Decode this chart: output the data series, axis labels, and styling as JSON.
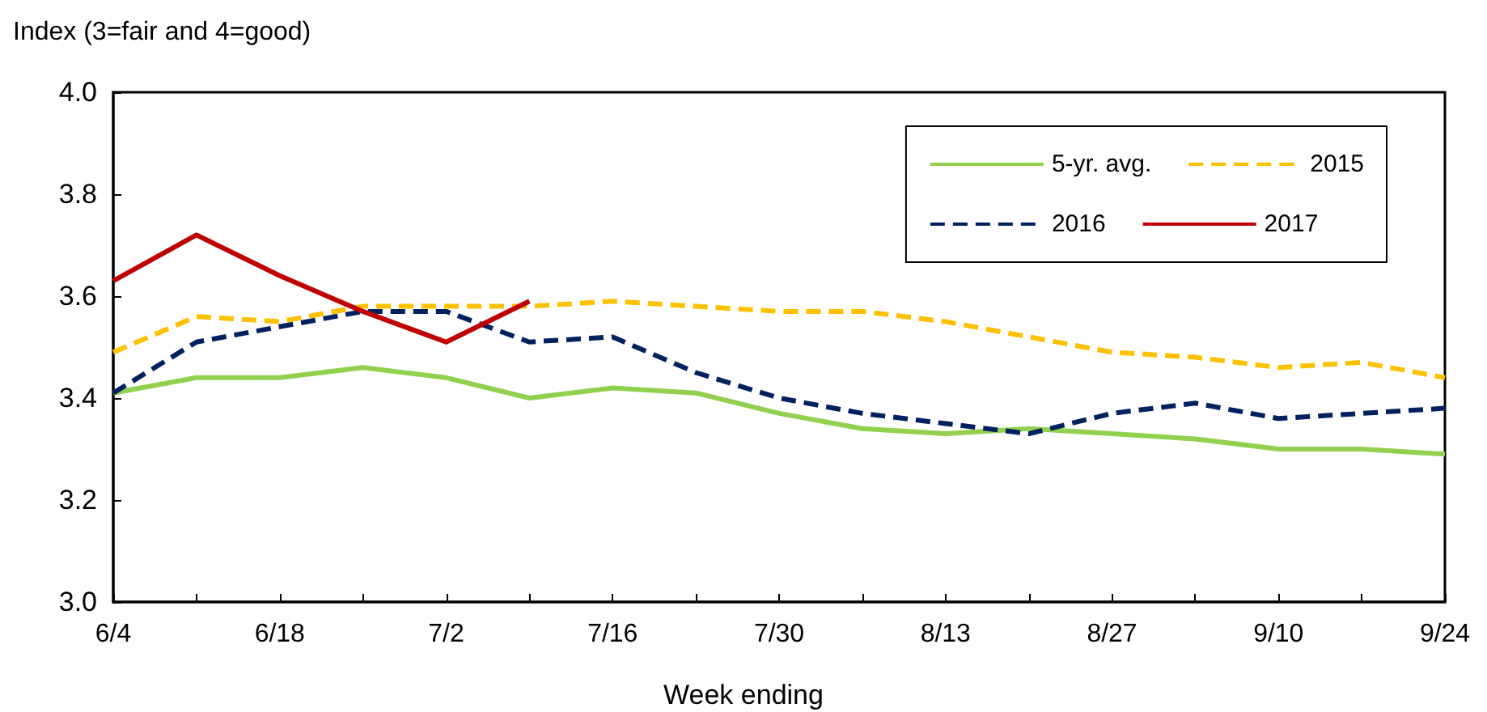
{
  "chart_data": {
    "type": "line",
    "ylabel": "Index (3=fair and 4=good)",
    "xlabel": "Week ending",
    "categories": [
      "6/4",
      null,
      "6/18",
      null,
      "7/2",
      null,
      "7/16",
      null,
      "7/30",
      null,
      "8/13",
      null,
      "8/27",
      null,
      "9/10",
      null,
      "9/24"
    ],
    "series": [
      {
        "name": "5-yr. avg.",
        "color": "#92d050",
        "line_style": "solid",
        "values": [
          3.41,
          3.44,
          3.44,
          3.46,
          3.44,
          3.4,
          3.42,
          3.41,
          3.37,
          3.34,
          3.33,
          3.34,
          3.33,
          3.32,
          3.3,
          3.3,
          3.29
        ]
      },
      {
        "name": "2015",
        "color": "#ffc000",
        "line_style": "dashed",
        "values": [
          3.49,
          3.56,
          3.55,
          3.58,
          3.58,
          3.58,
          3.59,
          3.58,
          3.57,
          3.57,
          3.55,
          3.52,
          3.49,
          3.48,
          3.46,
          3.47,
          3.44
        ]
      },
      {
        "name": "2016",
        "color": "#002060",
        "line_style": "dashed",
        "values": [
          3.41,
          3.51,
          3.54,
          3.57,
          3.57,
          3.51,
          3.52,
          3.45,
          3.4,
          3.37,
          3.35,
          3.33,
          3.37,
          3.39,
          3.36,
          3.37,
          3.38
        ]
      },
      {
        "name": "2017",
        "color": "#c00000",
        "line_style": "solid",
        "values": [
          3.63,
          3.72,
          3.64,
          3.57,
          3.51,
          3.59,
          null,
          null,
          null,
          null,
          null,
          null,
          null,
          null,
          null,
          null,
          null
        ]
      }
    ],
    "ylim": [
      3.0,
      4.0
    ],
    "yticks": [
      {
        "value": 3.0,
        "label": "3.0"
      },
      {
        "value": 3.2,
        "label": "3.2"
      },
      {
        "value": 3.4,
        "label": "3.4"
      },
      {
        "value": 3.6,
        "label": "3.6"
      },
      {
        "value": 3.8,
        "label": "3.8"
      },
      {
        "value": 4.0,
        "label": "4.0"
      }
    ],
    "grid": false,
    "legend": "top right",
    "marker": "none"
  }
}
